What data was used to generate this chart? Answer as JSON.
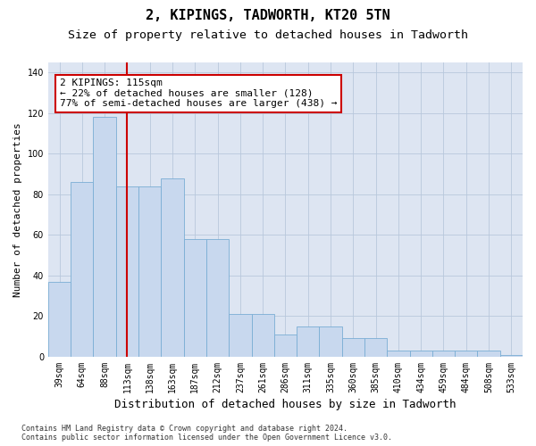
{
  "title": "2, KIPINGS, TADWORTH, KT20 5TN",
  "subtitle": "Size of property relative to detached houses in Tadworth",
  "xlabel": "Distribution of detached houses by size in Tadworth",
  "ylabel": "Number of detached properties",
  "categories": [
    "39sqm",
    "64sqm",
    "88sqm",
    "113sqm",
    "138sqm",
    "163sqm",
    "187sqm",
    "212sqm",
    "237sqm",
    "261sqm",
    "286sqm",
    "311sqm",
    "335sqm",
    "360sqm",
    "385sqm",
    "410sqm",
    "434sqm",
    "459sqm",
    "484sqm",
    "508sqm",
    "533sqm"
  ],
  "values": [
    37,
    86,
    118,
    84,
    84,
    88,
    58,
    58,
    21,
    21,
    11,
    15,
    15,
    9,
    9,
    3,
    3,
    3,
    3,
    3,
    1
  ],
  "bar_color": "#c8d8ee",
  "bar_edge_color": "#7aaed4",
  "vline_color": "#cc0000",
  "vline_x_index": 3,
  "annotation_text": "2 KIPINGS: 115sqm\n← 22% of detached houses are smaller (128)\n77% of semi-detached houses are larger (438) →",
  "annotation_box_facecolor": "#ffffff",
  "annotation_box_edgecolor": "#cc0000",
  "ax_facecolor": "#dde5f2",
  "fig_facecolor": "#ffffff",
  "grid_color": "#b8c8dc",
  "ylim": [
    0,
    145
  ],
  "yticks": [
    0,
    20,
    40,
    60,
    80,
    100,
    120,
    140
  ],
  "title_fontsize": 11,
  "subtitle_fontsize": 9.5,
  "xlabel_fontsize": 9,
  "ylabel_fontsize": 8,
  "tick_fontsize": 7,
  "annotation_fontsize": 8,
  "footnote": "Contains HM Land Registry data © Crown copyright and database right 2024.\nContains public sector information licensed under the Open Government Licence v3.0.",
  "footnote_fontsize": 6
}
